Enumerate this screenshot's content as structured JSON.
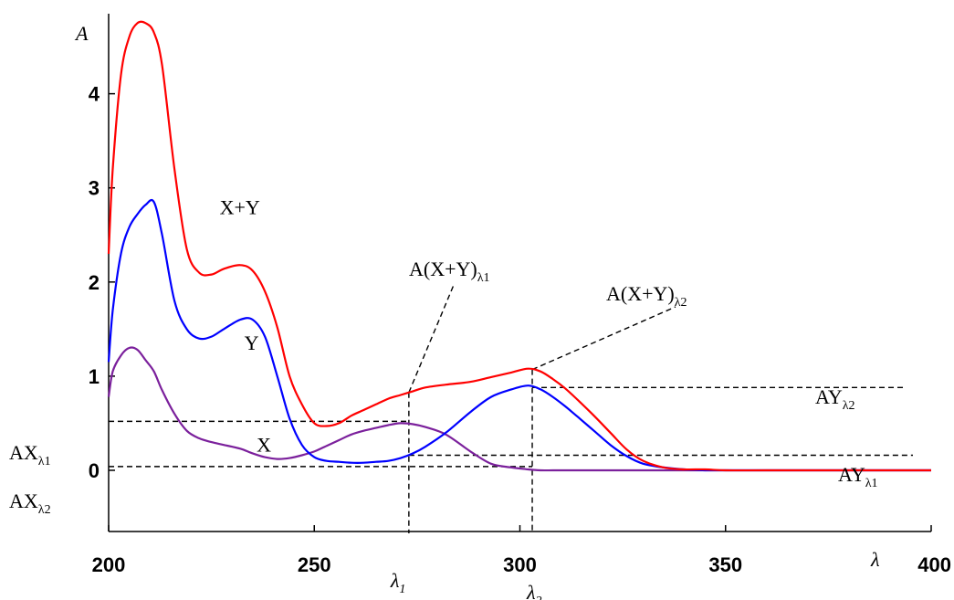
{
  "chart_data": {
    "type": "line",
    "ylabel": "A",
    "xlabel": "λ",
    "xlim": [
      200,
      400
    ],
    "ylim": [
      -0.65,
      4.85
    ],
    "x_ticks": [
      "200",
      "250",
      "300",
      "350",
      "400"
    ],
    "y_ticks": [
      "0",
      "1",
      "2",
      "3",
      "4"
    ],
    "series": [
      {
        "name": "X+Y",
        "color": "#ff0000",
        "x": [
          200,
          201,
          203,
          205,
          207,
          209,
          211,
          213,
          216,
          219,
          222,
          225,
          228,
          232,
          235,
          238,
          241,
          244,
          247,
          250,
          253,
          256,
          259,
          262,
          265,
          268,
          271,
          274,
          277,
          282,
          288,
          293,
          298,
          302,
          305,
          308,
          311,
          314,
          318,
          322,
          326,
          330,
          335,
          340,
          345,
          350,
          360,
          380,
          400
        ],
        "y": [
          2.3,
          3.2,
          4.2,
          4.6,
          4.75,
          4.75,
          4.65,
          4.3,
          3.2,
          2.35,
          2.1,
          2.08,
          2.14,
          2.18,
          2.12,
          1.9,
          1.52,
          1.0,
          0.7,
          0.5,
          0.47,
          0.5,
          0.58,
          0.64,
          0.7,
          0.76,
          0.8,
          0.84,
          0.88,
          0.91,
          0.94,
          0.99,
          1.04,
          1.08,
          1.05,
          0.97,
          0.87,
          0.75,
          0.58,
          0.4,
          0.22,
          0.1,
          0.03,
          0.01,
          0.01,
          0.0,
          0.0,
          0.0,
          0.0
        ]
      },
      {
        "name": "Y",
        "color": "#0000ff",
        "x": [
          200,
          201,
          203,
          205,
          207,
          209,
          211,
          213,
          216,
          219,
          222,
          225,
          228,
          232,
          235,
          238,
          241,
          244,
          247,
          250,
          253,
          256,
          259,
          262,
          265,
          268,
          271,
          274,
          277,
          282,
          288,
          293,
          298,
          302,
          305,
          308,
          311,
          314,
          318,
          322,
          326,
          330,
          335,
          340,
          345,
          350,
          360,
          380,
          400
        ],
        "y": [
          1.15,
          1.7,
          2.3,
          2.58,
          2.72,
          2.82,
          2.85,
          2.5,
          1.8,
          1.5,
          1.4,
          1.42,
          1.5,
          1.6,
          1.6,
          1.42,
          1.0,
          0.55,
          0.27,
          0.14,
          0.1,
          0.09,
          0.08,
          0.08,
          0.09,
          0.1,
          0.13,
          0.18,
          0.25,
          0.4,
          0.62,
          0.78,
          0.86,
          0.9,
          0.86,
          0.78,
          0.68,
          0.57,
          0.42,
          0.27,
          0.15,
          0.07,
          0.03,
          0.01,
          0.0,
          0.0,
          0.0,
          0.0,
          0.0
        ]
      },
      {
        "name": "X",
        "color": "#7b209c",
        "x": [
          200,
          201,
          203,
          205,
          207,
          209,
          211,
          213,
          216,
          219,
          222,
          225,
          228,
          232,
          235,
          238,
          241,
          244,
          247,
          250,
          253,
          256,
          259,
          262,
          265,
          268,
          271,
          274,
          277,
          282,
          288,
          293,
          298,
          302,
          305,
          308,
          311,
          314,
          318,
          322,
          326,
          330,
          335,
          340,
          345,
          350,
          360,
          380,
          400
        ],
        "y": [
          0.78,
          1.05,
          1.22,
          1.3,
          1.28,
          1.17,
          1.05,
          0.85,
          0.6,
          0.42,
          0.34,
          0.3,
          0.27,
          0.23,
          0.18,
          0.14,
          0.12,
          0.13,
          0.16,
          0.2,
          0.26,
          0.32,
          0.38,
          0.42,
          0.45,
          0.48,
          0.5,
          0.49,
          0.46,
          0.38,
          0.2,
          0.07,
          0.03,
          0.01,
          0.0,
          0.0,
          0.0,
          0.0,
          0.0,
          0.0,
          0.0,
          0.0,
          0.0,
          0.0,
          0.0,
          0.0,
          0.0,
          0.0,
          0.0
        ]
      }
    ],
    "curve_labels": [
      {
        "text": "X+Y",
        "x": 227,
        "y": 2.72
      },
      {
        "text": "Y",
        "x": 233,
        "y": 1.28
      },
      {
        "text": "X",
        "x": 236,
        "y": 0.2
      }
    ],
    "wavelength_markers": [
      {
        "name": "λ",
        "sub": "1",
        "x": 273
      },
      {
        "name": "λ",
        "sub": "2",
        "x": 303
      }
    ],
    "annotations": [
      {
        "main": "A(X+Y)",
        "sub": "λ1"
      },
      {
        "main": "A(X+Y)",
        "sub": "λ2"
      },
      {
        "main": "AX",
        "sub": "λ1",
        "value": 0.52
      },
      {
        "main": "AX",
        "sub": "λ2",
        "value": 0.04
      },
      {
        "main": "AY",
        "sub": "λ2",
        "value": 0.88
      },
      {
        "main": "AY",
        "sub": "λ1",
        "value": 0.16
      }
    ],
    "grid": false,
    "legend": "none"
  }
}
